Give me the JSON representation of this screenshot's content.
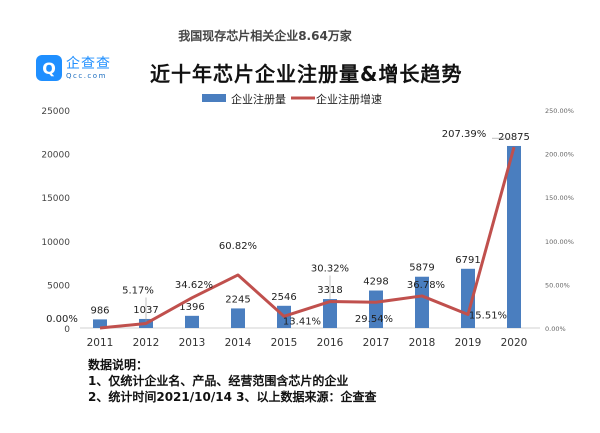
{
  "subtitle": "我国现存芯片相关企业8.64万家",
  "logo": {
    "cn": "企查查",
    "en": "Qcc.com"
  },
  "chart_data": {
    "type": "bar+line",
    "title": "近十年芯片企业注册量&增长趋势",
    "categories": [
      "2011",
      "2012",
      "2013",
      "2014",
      "2015",
      "2016",
      "2017",
      "2018",
      "2019",
      "2020"
    ],
    "series": [
      {
        "name": "企业注册量",
        "type": "bar",
        "axis": "left",
        "color": "#4a7ebf",
        "values": [
          986,
          1037,
          1396,
          2245,
          2546,
          3318,
          4298,
          5879,
          6791,
          20875
        ],
        "labels": [
          "986",
          "1037",
          "1396",
          "2245",
          "2546",
          "3318",
          "4298",
          "5879",
          "6791",
          "20875"
        ]
      },
      {
        "name": "企业注册增速",
        "type": "line",
        "axis": "right",
        "color": "#c0504d",
        "values": [
          0,
          5.17,
          34.62,
          60.82,
          13.41,
          30.32,
          29.54,
          36.78,
          15.51,
          207.39
        ],
        "labels": [
          "0.00%",
          "5.17%",
          "34.62%",
          "60.82%",
          "13.41%",
          "30.32%",
          "29.54%",
          "36.78%",
          "15.51%",
          "207.39%"
        ]
      }
    ],
    "left_axis": {
      "ylim": [
        0,
        25000
      ],
      "ticks": [
        "0",
        "5000",
        "10000",
        "15000",
        "20000",
        "25000"
      ],
      "tick_values": [
        0,
        5000,
        10000,
        15000,
        20000,
        25000
      ]
    },
    "right_axis": {
      "ylim": [
        0,
        250
      ],
      "ticks": [
        "0.00%",
        "50.00%",
        "100.00%",
        "150.00%",
        "200.00%",
        "250.00%"
      ],
      "tick_values": [
        0,
        50,
        100,
        150,
        200,
        250
      ]
    },
    "legend": "top",
    "grid": false
  },
  "notes": {
    "heading": "数据说明：",
    "line1": "1、仅统计企业名、产品、经营范围含芯片的企业",
    "line2": "2、统计时间2021/10/14   3、以上数据来源：企查查"
  }
}
